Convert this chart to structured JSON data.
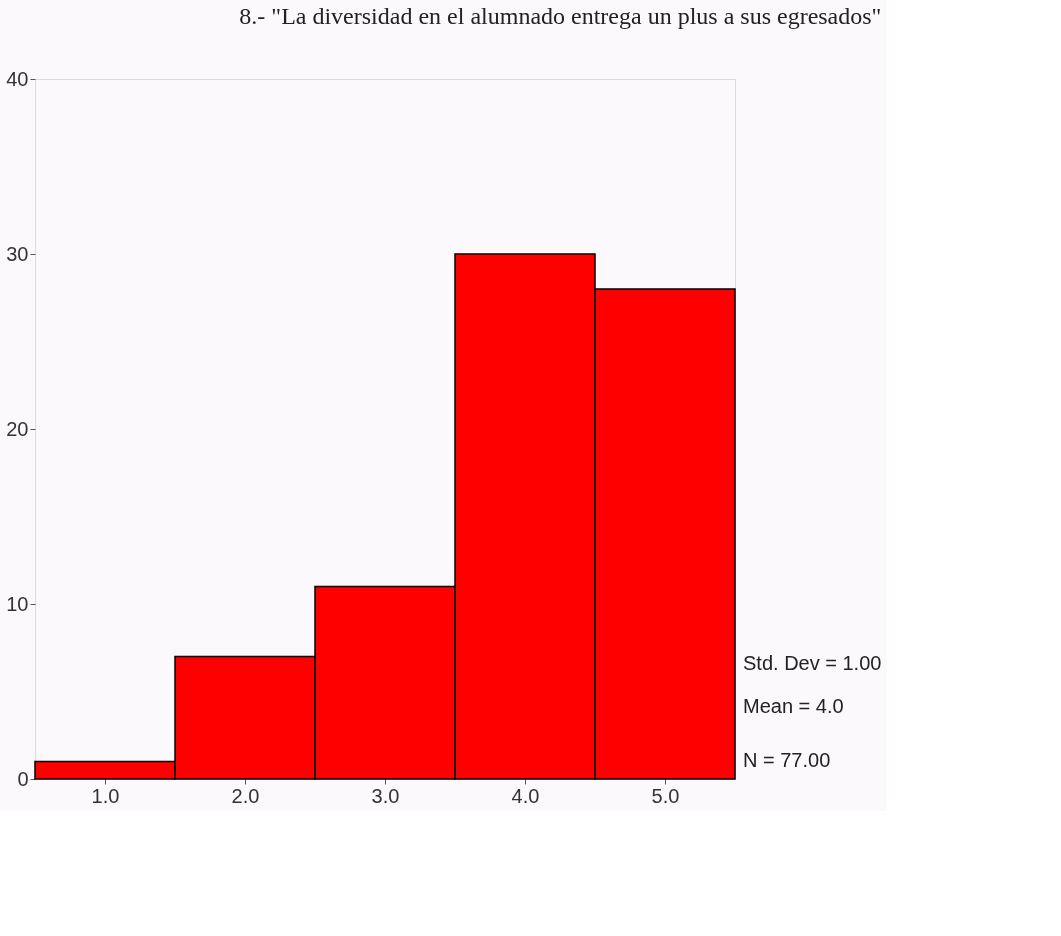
{
  "chart_data": {
    "type": "histogram",
    "title": "8.- \"La diversidad en el alumnado entrega un plus a sus egresados\"",
    "bins": [
      0.5,
      1.5,
      2.5,
      3.5,
      4.5,
      5.5
    ],
    "values": [
      1,
      7,
      11,
      30,
      28
    ],
    "color": "#fe0000",
    "xlim": [
      0.5,
      5.5
    ],
    "xticks": [
      {
        "value": 1,
        "label": "1.0"
      },
      {
        "value": 2,
        "label": "2.0"
      },
      {
        "value": 3,
        "label": "3.0"
      },
      {
        "value": 4,
        "label": "4.0"
      },
      {
        "value": 5,
        "label": "5.0"
      }
    ],
    "ylim": [
      0,
      40
    ],
    "yticks": [
      0,
      10,
      20,
      30,
      40
    ],
    "grid": false,
    "annotations": [
      "Std. Dev = 1.00",
      "Mean = 4.0",
      "N = 77.00"
    ]
  }
}
